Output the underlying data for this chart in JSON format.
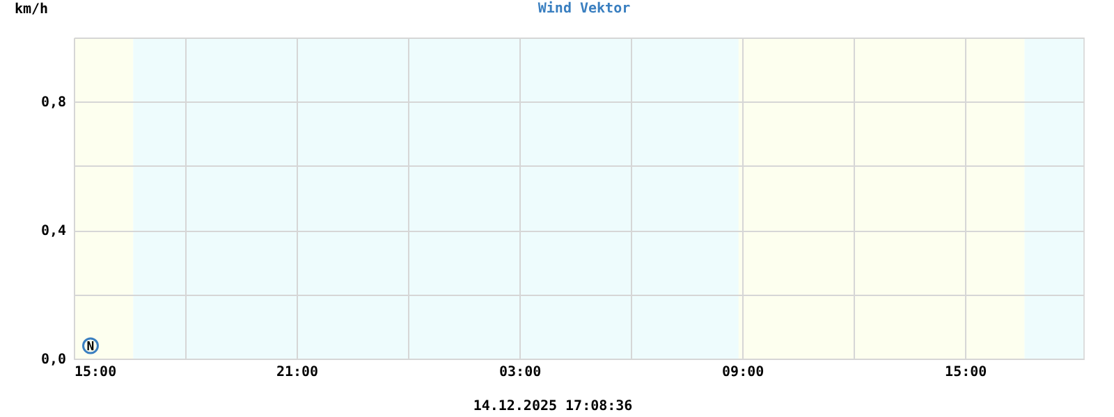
{
  "chart_data": {
    "type": "scatter",
    "title": "Wind Vektor",
    "ylabel": "km/h",
    "x": [
      "2025-12-13T15:27"
    ],
    "series": [
      {
        "color": "#3a7fc0",
        "values": [
          0.04
        ]
      }
    ],
    "marker": "circle",
    "xlim": [
      "2025-12-13T15:00",
      "2025-12-14T18:11"
    ],
    "xticks": [
      {
        "value": "2025-12-13T15:00",
        "label": "15:00"
      },
      {
        "value": "2025-12-13T18:00",
        "label": null
      },
      {
        "value": "2025-12-13T21:00",
        "label": "21:00"
      },
      {
        "value": "2025-12-14T00:00",
        "label": null
      },
      {
        "value": "2025-12-14T03:00",
        "label": "03:00"
      },
      {
        "value": "2025-12-14T06:00",
        "label": null
      },
      {
        "value": "2025-12-14T09:00",
        "label": "09:00"
      },
      {
        "value": "2025-12-14T12:00",
        "label": null
      },
      {
        "value": "2025-12-14T15:00",
        "label": "15:00"
      }
    ],
    "ylim": [
      0,
      1
    ],
    "yticks": [
      {
        "value": 0,
        "label": "0,0"
      },
      {
        "value": 0.2,
        "label": null
      },
      {
        "value": 0.4,
        "label": "0,4"
      },
      {
        "value": 0.6,
        "label": null
      },
      {
        "value": 0.8,
        "label": "0,8"
      },
      {
        "value": 1,
        "label": null
      }
    ],
    "grid": true,
    "bands": [
      {
        "axis": "x",
        "from": "2025-12-13T15:00",
        "to": "2025-12-13T16:36",
        "color": "#fdffef"
      },
      {
        "axis": "x",
        "from": "2025-12-13T16:36",
        "to": "2025-12-14T08:54",
        "color": "#eefcfd"
      },
      {
        "axis": "x",
        "from": "2025-12-14T08:54",
        "to": "2025-12-14T16:36",
        "color": "#fdffef"
      },
      {
        "axis": "x",
        "from": "2025-12-14T16:36",
        "to": "2025-12-14T18:11",
        "color": "#eefcfd"
      }
    ],
    "annotations": [
      {
        "text": "N",
        "x": "2025-12-13T15:27",
        "y": 0.04
      },
      "14.12.2025 17:08:36"
    ]
  }
}
